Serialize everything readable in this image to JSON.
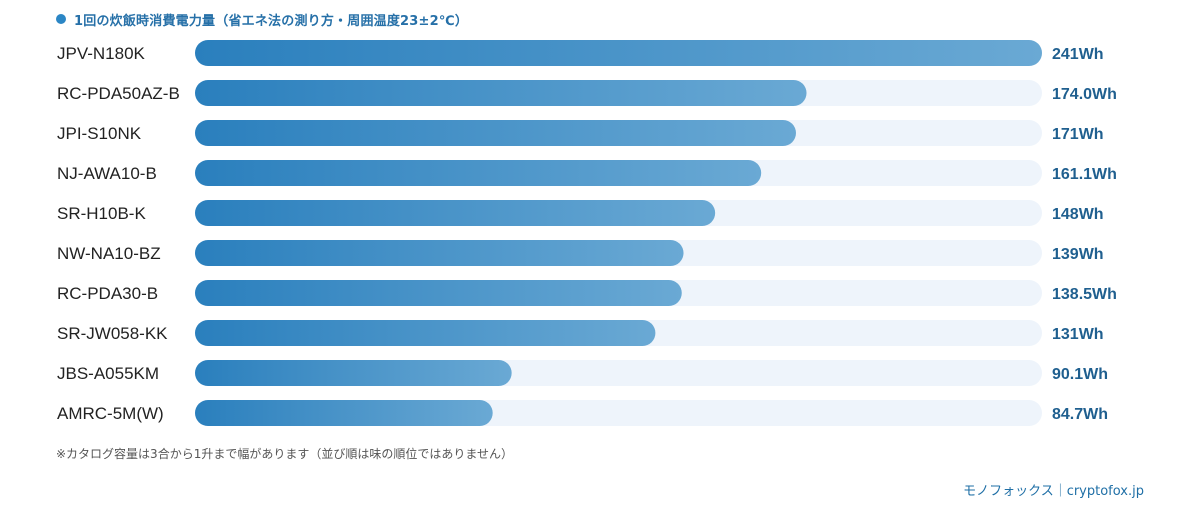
{
  "title": "1回の炊飯時消費電力量（省エネ法の測り方・周囲温度23±2℃）",
  "note": "※カタログ容量は3合から1升まで幅があります（並び順は味の順位ではありません）",
  "credit": "モノフォックス｜cryptofox.jp",
  "colors": {
    "accent": "#2b86c5",
    "bar_start": "#2a7fbd",
    "bar_end": "#6aa9d4",
    "track": "#eef4fb",
    "value_text": "#1f5f8f"
  },
  "chart_data": {
    "type": "bar",
    "orientation": "horizontal",
    "title": "1回の炊飯時消費電力量（省エネ法の測り方・周囲温度23±2℃）",
    "unit": "Wh",
    "categories": [
      "JPV-N180K",
      "RC-PDA50AZ-B",
      "JPI-S10NK",
      "NJ-AWA10-B",
      "SR-H10B-K",
      "NW-NA10-BZ",
      "RC-PDA30-B",
      "SR-JW058-KK",
      "JBS-A055KM",
      "AMRC-5M(W)"
    ],
    "values": [
      241,
      174.0,
      171,
      161.1,
      148,
      139,
      138.5,
      131,
      90.1,
      84.7
    ],
    "value_labels": [
      "241Wh",
      "174.0Wh",
      "171Wh",
      "161.1Wh",
      "148Wh",
      "139Wh",
      "138.5Wh",
      "131Wh",
      "90.1Wh",
      "84.7Wh"
    ],
    "xlim": [
      0,
      241
    ],
    "grid": false,
    "legend": "none"
  }
}
